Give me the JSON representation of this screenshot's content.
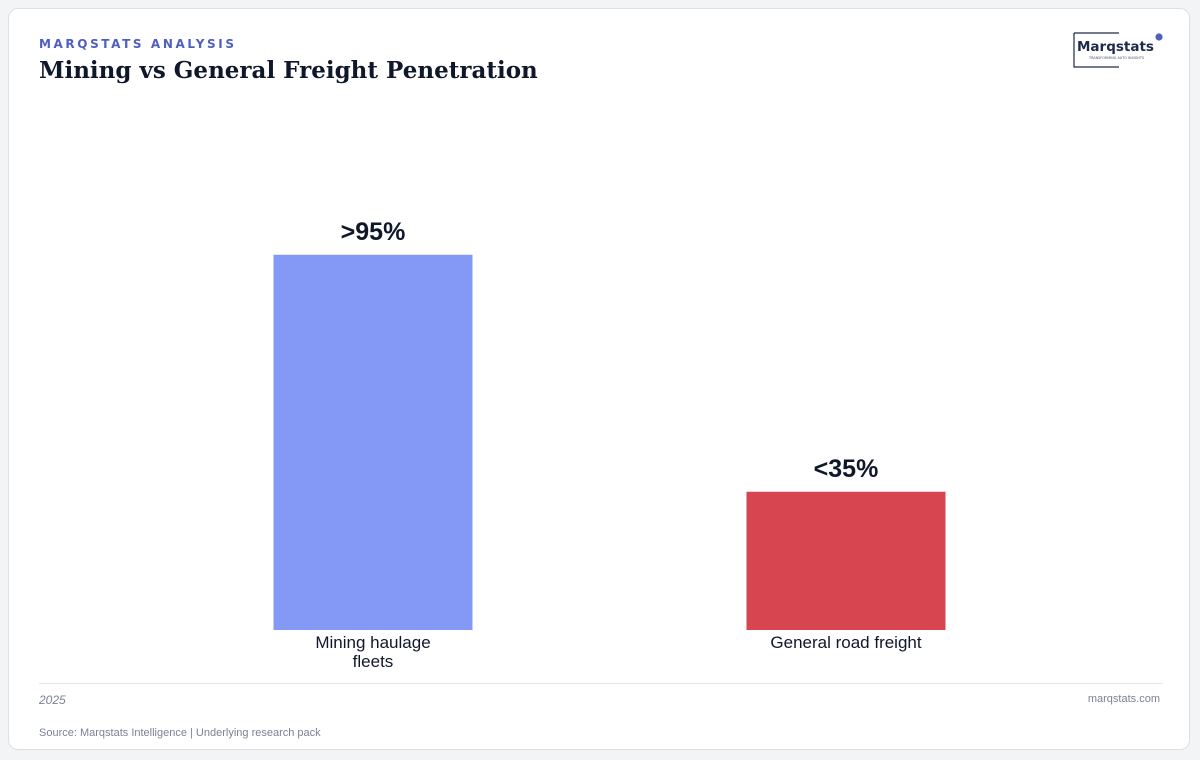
{
  "header": {
    "kicker": "MARQSTATS ANALYSIS",
    "title": "Mining vs General Freight Penetration"
  },
  "logo": {
    "name": "Marqstats",
    "tagline": "TRANSFORMING AUTO INSIGHTS"
  },
  "footer": {
    "year": "2025",
    "site": "marqstats.com",
    "source": "Source: Marqstats Intelligence | Underlying research pack"
  },
  "colors": {
    "kicker": "#4f5fc1",
    "bar_mining": "#8399f5",
    "bar_general": "#d64550",
    "text": "#0f172a"
  },
  "chart_data": {
    "type": "bar",
    "title": "Mining vs General Freight Penetration",
    "xlabel": "",
    "ylabel": "",
    "ylim": [
      0,
      100
    ],
    "grid": false,
    "categories": [
      [
        "Mining haulage",
        "fleets"
      ],
      [
        "General road freight"
      ]
    ],
    "values": [
      95,
      35
    ],
    "value_labels": [
      ">95%",
      "<35%"
    ],
    "colors": [
      "#8399f5",
      "#d64550"
    ]
  }
}
